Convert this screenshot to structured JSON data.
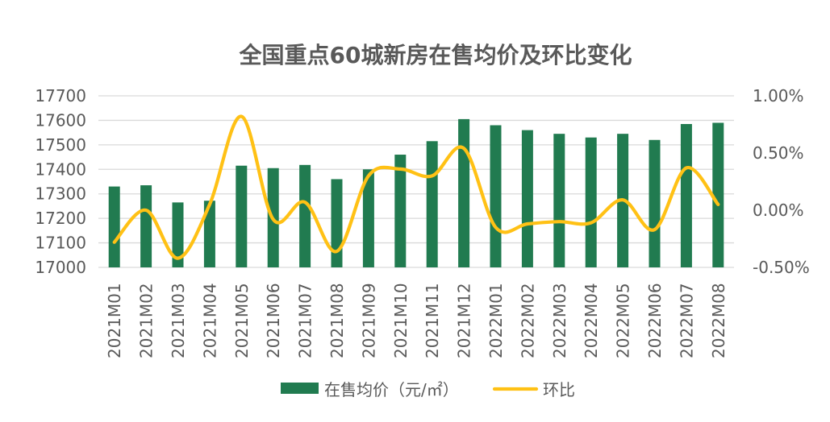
{
  "title": "全国重点60城新房在售均价及环比变化",
  "legend": {
    "bars": "在售均价（元/㎡）",
    "line": "环比"
  },
  "colors": {
    "bar": "#217B50",
    "line": "#FFC115",
    "text": "#595959",
    "grid": "#D9D9D9",
    "background": "#FFFFFF"
  },
  "chart_data": {
    "type": "bar+line-combo",
    "title": "全国重点60城新房在售均价及环比变化",
    "categories": [
      "2021M01",
      "2021M02",
      "2021M03",
      "2021M04",
      "2021M05",
      "2021M06",
      "2021M07",
      "2021M08",
      "2021M09",
      "2021M10",
      "2021M11",
      "2021M12",
      "2022M01",
      "2022M02",
      "2022M03",
      "2022M04",
      "2022M05",
      "2022M06",
      "2022M07",
      "2022M08"
    ],
    "series": [
      {
        "name": "在售均价（元/㎡）",
        "type": "bar",
        "axis": "left",
        "values": [
          17330,
          17335,
          17265,
          17272,
          17415,
          17405,
          17418,
          17360,
          17400,
          17460,
          17515,
          17605,
          17580,
          17560,
          17545,
          17530,
          17545,
          17520,
          17585,
          17590
        ]
      },
      {
        "name": "环比",
        "type": "line",
        "axis": "right",
        "unit": "%",
        "values": [
          -0.28,
          0.0,
          -0.42,
          0.05,
          0.82,
          -0.08,
          0.07,
          -0.36,
          0.3,
          0.36,
          0.3,
          0.54,
          -0.15,
          -0.12,
          -0.1,
          -0.11,
          0.09,
          -0.17,
          0.37,
          0.05
        ]
      }
    ],
    "left_axis": {
      "min": 17000,
      "max": 17700,
      "step": 100,
      "tick_labels": [
        "17700",
        "17600",
        "17500",
        "17400",
        "17300",
        "17200",
        "17100",
        "17000"
      ]
    },
    "right_axis": {
      "min": -0.5,
      "max": 1.0,
      "step": 0.5,
      "tick_labels": [
        "1.00%",
        "0.50%",
        "0.00%",
        "-0.50%"
      ]
    },
    "grid": true,
    "legend_position": "bottom",
    "x_labels_rotated_90": true
  }
}
